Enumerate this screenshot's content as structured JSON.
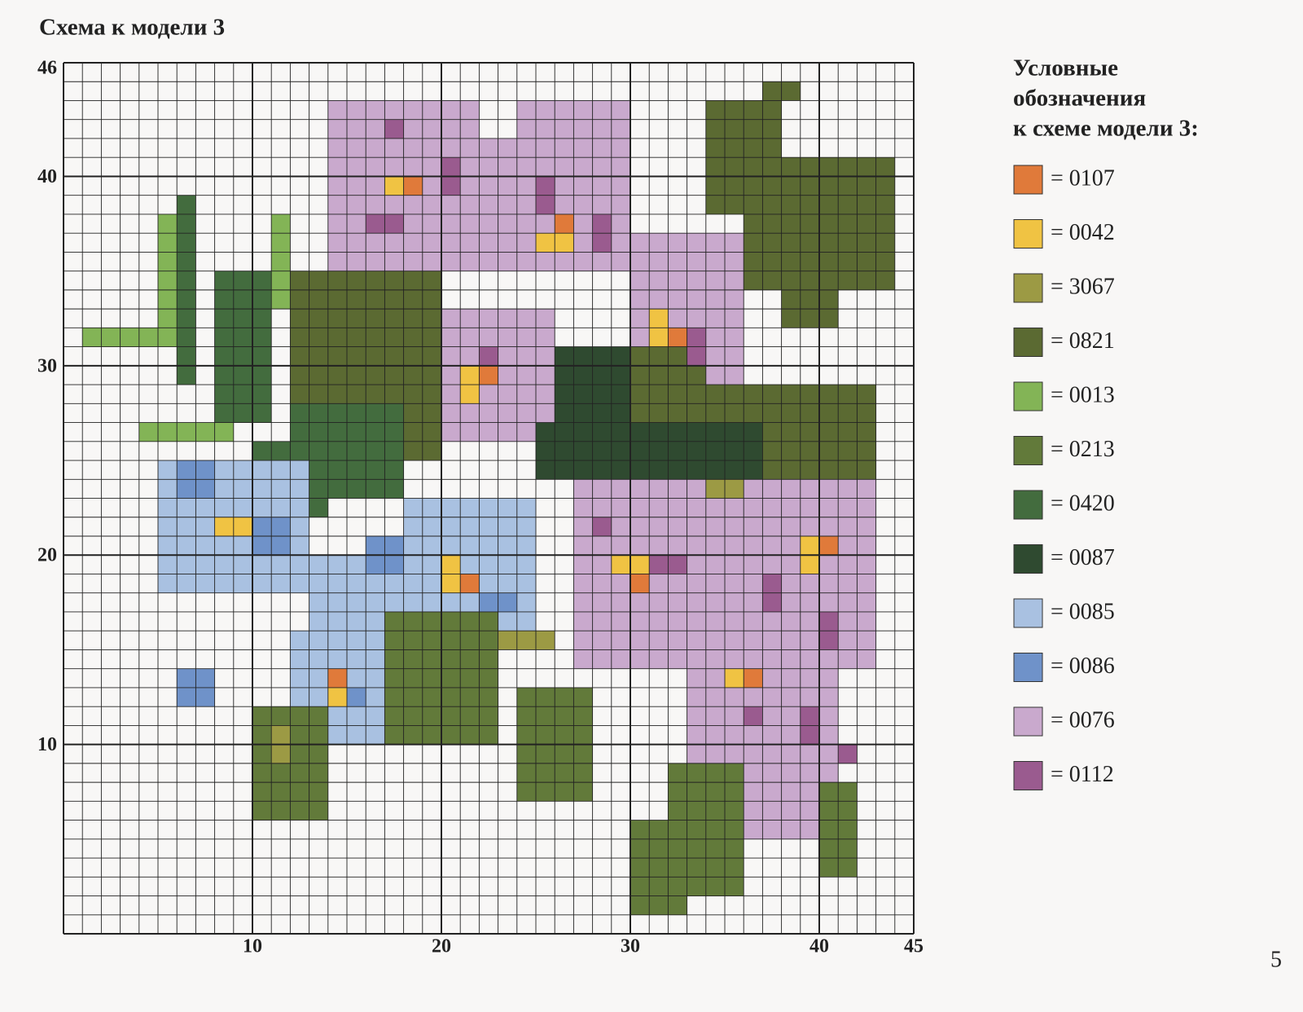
{
  "title": "Схема к модели 3",
  "grid": {
    "y_labels": [
      "46",
      "40",
      "30",
      "20",
      "10"
    ],
    "x_labels": [
      "10",
      "20",
      "30",
      "40",
      "45"
    ]
  },
  "legend": {
    "title_lines": [
      "Условные",
      "обозначения",
      "к схеме модели 3:"
    ],
    "items": [
      {
        "label": "= 0107",
        "color": "#e07a3a"
      },
      {
        "label": "= 0042",
        "color": "#f0c343"
      },
      {
        "label": "= 3067",
        "color": "#9c9a44"
      },
      {
        "label": "= 0821",
        "color": "#5b6a32"
      },
      {
        "label": "= 0013",
        "color": "#83b456"
      },
      {
        "label": "= 0213",
        "color": "#627a3a"
      },
      {
        "label": "= 0420",
        "color": "#436c3e"
      },
      {
        "label": "= 0087",
        "color": "#2f4a30"
      },
      {
        "label": "= 0085",
        "color": "#a9c1e1"
      },
      {
        "label": "= 0086",
        "color": "#6f92c9"
      },
      {
        "label": "= 0076",
        "color": "#c9a9cd"
      },
      {
        "label": "= 0112",
        "color": "#9a5b8f"
      }
    ]
  },
  "page_number": "5"
}
